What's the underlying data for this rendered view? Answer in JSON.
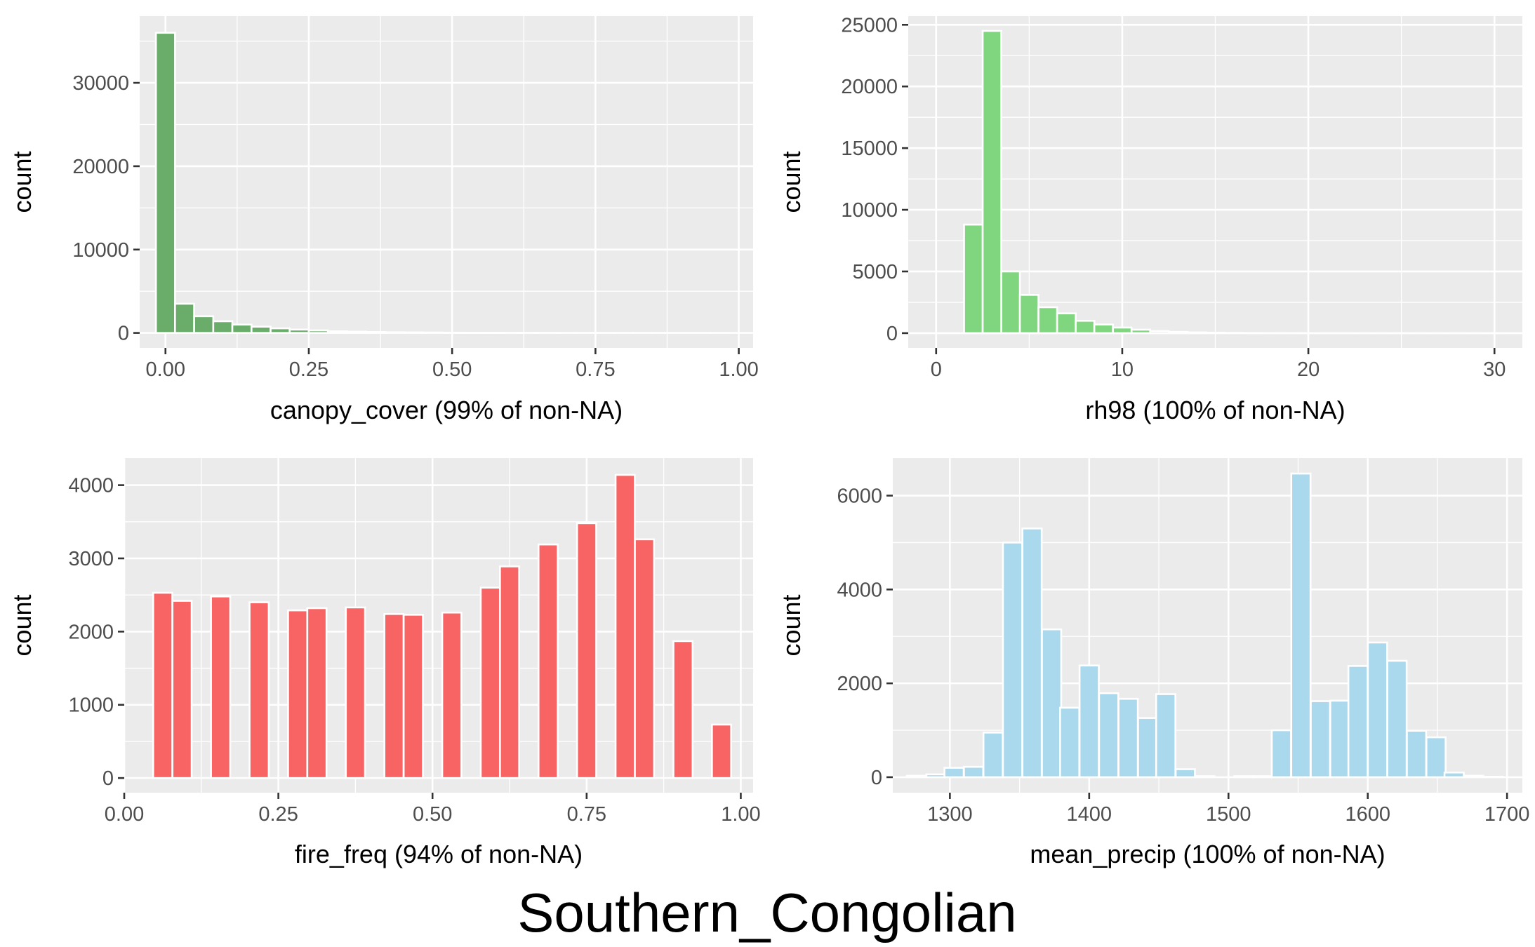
{
  "figure_title": "Southern_Congolian",
  "chart_data": [
    {
      "type": "bar",
      "subtype": "histogram",
      "xlabel": "canopy_cover (99% of non-NA)",
      "ylabel": "count",
      "xlim": [
        -0.045,
        1.025
      ],
      "ylim": [
        -1800,
        38000
      ],
      "x_ticks": [
        0.0,
        0.25,
        0.5,
        0.75,
        1.0
      ],
      "x_tick_labels": [
        "0.00",
        "0.25",
        "0.50",
        "0.75",
        "1.00"
      ],
      "y_ticks": [
        0,
        10000,
        20000,
        30000
      ],
      "y_tick_labels": [
        "0",
        "10000",
        "20000",
        "30000"
      ],
      "color": "#6aad6a",
      "bin_width": 0.0333,
      "x": [
        0.0,
        0.0333,
        0.0667,
        0.1,
        0.1333,
        0.1667,
        0.2,
        0.2333,
        0.2667,
        0.3,
        0.3333,
        0.3667,
        0.4,
        0.4333,
        0.4667,
        0.5,
        0.5333,
        0.5667,
        0.6,
        0.6333,
        0.6667,
        0.7,
        0.7333,
        0.7667,
        0.8,
        0.8333,
        0.8667,
        0.9,
        0.9333,
        0.9667
      ],
      "values": [
        36000,
        3500,
        2000,
        1400,
        1000,
        750,
        550,
        400,
        300,
        200,
        150,
        110,
        80,
        60,
        45,
        35,
        28,
        22,
        18,
        15,
        12,
        10,
        8,
        7,
        6,
        5,
        4,
        3,
        3,
        2
      ]
    },
    {
      "type": "bar",
      "subtype": "histogram",
      "xlabel": "rh98 (100% of non-NA)",
      "ylabel": "count",
      "xlim": [
        -1.5,
        31.5
      ],
      "ylim": [
        -1200,
        25700
      ],
      "x_ticks": [
        0,
        10,
        20,
        30
      ],
      "x_tick_labels": [
        "0",
        "10",
        "20",
        "30"
      ],
      "y_ticks": [
        0,
        5000,
        10000,
        15000,
        20000,
        25000
      ],
      "y_tick_labels": [
        "0",
        "5000",
        "10000",
        "15000",
        "20000",
        "25000"
      ],
      "color": "#7fd67f",
      "bin_width": 1.0,
      "x": [
        2,
        3,
        4,
        5,
        6,
        7,
        8,
        9,
        10,
        11,
        12,
        13,
        14,
        15,
        16,
        17,
        18,
        19,
        20,
        21,
        22,
        23,
        24,
        25,
        26,
        27,
        28,
        29,
        30
      ],
      "values": [
        8800,
        24500,
        5000,
        3100,
        2100,
        1600,
        1000,
        700,
        450,
        280,
        160,
        100,
        60,
        40,
        25,
        15,
        10,
        8,
        6,
        5,
        4,
        3,
        2,
        2,
        1,
        1,
        1,
        1,
        1
      ]
    },
    {
      "type": "bar",
      "subtype": "histogram",
      "xlabel": "fire_freq (94% of non-NA)",
      "ylabel": "count",
      "xlim": [
        0.0,
        1.02
      ],
      "ylim": [
        -200,
        4370
      ],
      "x_ticks": [
        0.0,
        0.25,
        0.5,
        0.75,
        1.0
      ],
      "x_tick_labels": [
        "0.00",
        "0.25",
        "0.50",
        "0.75",
        "1.00"
      ],
      "y_ticks": [
        0,
        1000,
        2000,
        3000,
        4000
      ],
      "y_tick_labels": [
        "0",
        "1000",
        "2000",
        "3000",
        "4000"
      ],
      "color": "#f86464",
      "bin_width": 0.0311,
      "x": [
        0.0625,
        0.0938,
        0.1563,
        0.2188,
        0.2813,
        0.3125,
        0.375,
        0.4375,
        0.4688,
        0.5313,
        0.5938,
        0.625,
        0.6875,
        0.75,
        0.8125,
        0.8438,
        0.9063,
        0.9688
      ],
      "values": [
        2530,
        2420,
        2480,
        2400,
        2290,
        2320,
        2330,
        2240,
        2230,
        2260,
        2600,
        2890,
        3190,
        3480,
        4140,
        3260,
        1870,
        730
      ]
    },
    {
      "type": "bar",
      "subtype": "histogram",
      "xlabel": "mean_precip (100% of non-NA)",
      "ylabel": "count",
      "xlim": [
        1259,
        1711
      ],
      "ylim": [
        -330,
        6800
      ],
      "x_ticks": [
        1300,
        1400,
        1500,
        1600,
        1700
      ],
      "x_tick_labels": [
        "1300",
        "1400",
        "1500",
        "1600",
        "1700"
      ],
      "y_ticks": [
        0,
        2000,
        4000,
        6000
      ],
      "y_tick_labels": [
        "0",
        "2000",
        "4000",
        "6000"
      ],
      "color": "#aad8ec",
      "bin_width": 13.8,
      "x": [
        1276,
        1290,
        1303,
        1317,
        1331,
        1345,
        1359,
        1373,
        1386,
        1400,
        1414,
        1428,
        1442,
        1455,
        1469,
        1483,
        1497,
        1511,
        1524,
        1538,
        1552,
        1566,
        1580,
        1593,
        1607,
        1621,
        1635,
        1649,
        1662,
        1676,
        1690
      ],
      "values": [
        30,
        60,
        200,
        220,
        950,
        5000,
        5300,
        3150,
        1480,
        2380,
        1790,
        1670,
        1260,
        1770,
        170,
        20,
        0,
        20,
        20,
        1000,
        6470,
        1620,
        1630,
        2370,
        2870,
        2480,
        990,
        850,
        100,
        30,
        10
      ]
    }
  ]
}
